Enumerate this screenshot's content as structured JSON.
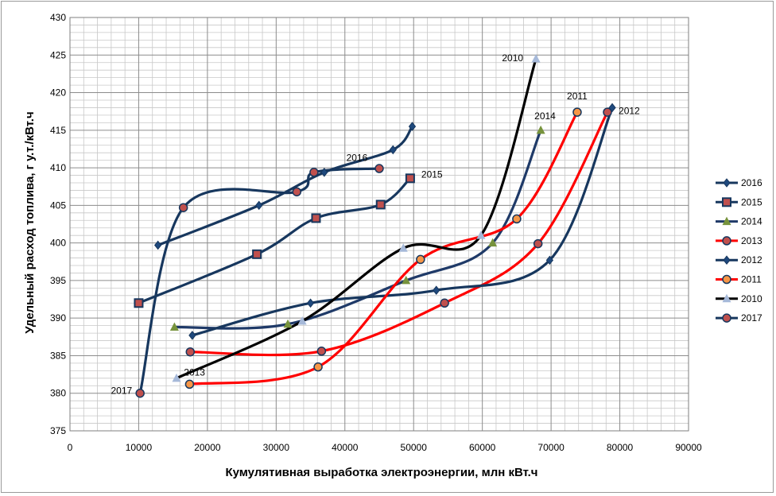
{
  "chart_data": {
    "type": "line",
    "title": "",
    "xlabel": "Кумулятивная выработка электроэнергии, млн кВт.ч",
    "ylabel": "Удельный расход топлива, г у.т./кВт.ч",
    "xlim": [
      0,
      90000
    ],
    "ylim": [
      375,
      430
    ],
    "x_ticks": [
      0,
      10000,
      20000,
      30000,
      40000,
      50000,
      60000,
      70000,
      80000,
      90000
    ],
    "y_ticks": [
      375,
      380,
      385,
      390,
      395,
      400,
      405,
      410,
      415,
      420,
      425,
      430
    ],
    "grid": true,
    "legend_position": "right",
    "series": [
      {
        "name": "2016",
        "color": "#17375e",
        "marker": "diamond",
        "x": [
          12800,
          27500,
          37000,
          47000,
          49800
        ],
        "y": [
          399.7,
          405.0,
          409.4,
          412.4,
          415.5
        ],
        "label": "2016"
      },
      {
        "name": "2015",
        "color": "#17375e",
        "marker": "square",
        "x": [
          10000,
          27200,
          35800,
          45200,
          49500
        ],
        "y": [
          392.0,
          398.5,
          403.3,
          405.1,
          408.6
        ],
        "label": "2015"
      },
      {
        "name": "2014",
        "color": "#1f3a68",
        "marker": "triangle",
        "markerColor": "#77933c",
        "x": [
          15200,
          31700,
          48900,
          61500,
          68500
        ],
        "y": [
          388.8,
          389.2,
          395.0,
          400.0,
          415.0
        ],
        "label": "2014"
      },
      {
        "name": "2013",
        "color": "#ff0000",
        "marker": "circle",
        "markerColor": "#c0504d",
        "x": [
          17500,
          36600,
          54500,
          68100,
          78200
        ],
        "y": [
          385.5,
          385.6,
          392.0,
          399.9,
          417.4
        ],
        "label": "2013"
      },
      {
        "name": "2012",
        "color": "#17375e",
        "marker": "diamond",
        "x": [
          17800,
          35000,
          53300,
          69800,
          78900
        ],
        "y": [
          387.7,
          392.0,
          393.7,
          397.7,
          418.0
        ],
        "label": "2012"
      },
      {
        "name": "2011",
        "color": "#ff0000",
        "marker": "circle",
        "markerColor": "#f79646",
        "x": [
          17400,
          36100,
          51000,
          65000,
          73800
        ],
        "y": [
          381.2,
          383.5,
          397.8,
          403.2,
          417.4
        ],
        "label": "2011"
      },
      {
        "name": "2010",
        "color": "#000000",
        "marker": "triangle",
        "markerColor": "#a6b9d9",
        "x": [
          15500,
          33800,
          48500,
          59800,
          67800
        ],
        "y": [
          382.0,
          389.6,
          399.3,
          401.0,
          424.5
        ],
        "label": "2010"
      },
      {
        "name": "2017",
        "color": "#17375e",
        "marker": "circle",
        "markerColor": "#c0504d",
        "x": [
          10200,
          16500,
          33000,
          35500,
          45000
        ],
        "y": [
          380.0,
          404.7,
          406.8,
          409.4,
          409.9
        ],
        "label": "2017"
      }
    ],
    "legend": [
      "2016",
      "2015",
      "2014",
      "2013",
      "2012",
      "2011",
      "2010",
      "2017"
    ]
  }
}
